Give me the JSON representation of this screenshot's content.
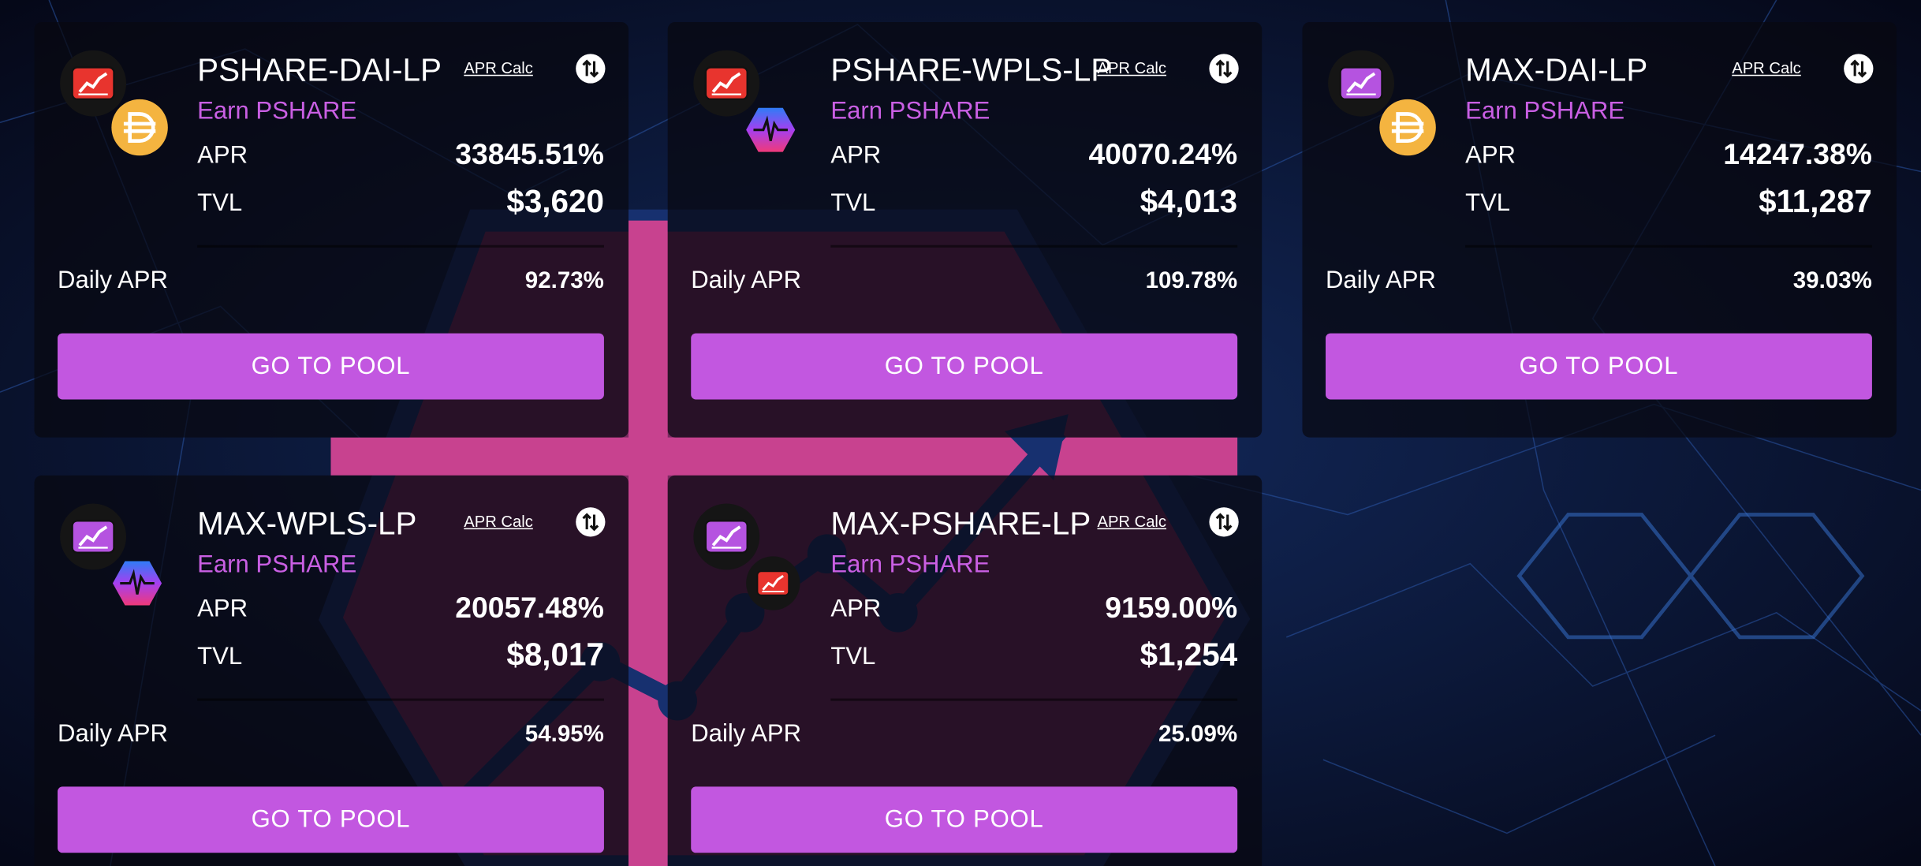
{
  "cards": [
    {
      "title": "PSHARE-DAI-LP",
      "apr_calc": "APR Calc",
      "earn": "Earn PSHARE",
      "apr_label": "APR",
      "apr": "33845.51%",
      "tvl_label": "TVL",
      "tvl": "$3,620",
      "daily_label": "Daily APR",
      "daily": "92.73%",
      "button": "GO TO POOL"
    },
    {
      "title": "PSHARE-WPLS-LP",
      "apr_calc": "APR Calc",
      "earn": "Earn PSHARE",
      "apr_label": "APR",
      "apr": "40070.24%",
      "tvl_label": "TVL",
      "tvl": "$4,013",
      "daily_label": "Daily APR",
      "daily": "109.78%",
      "button": "GO TO POOL"
    },
    {
      "title": "MAX-DAI-LP",
      "apr_calc": "APR Calc",
      "earn": "Earn PSHARE",
      "apr_label": "APR",
      "apr": "14247.38%",
      "tvl_label": "TVL",
      "tvl": "$11,287",
      "daily_label": "Daily APR",
      "daily": "39.03%",
      "button": "GO TO POOL"
    },
    {
      "title": "MAX-WPLS-LP",
      "apr_calc": "APR Calc",
      "earn": "Earn PSHARE",
      "apr_label": "APR",
      "apr": "20057.48%",
      "tvl_label": "TVL",
      "tvl": "$8,017",
      "daily_label": "Daily APR",
      "daily": "54.95%",
      "button": "GO TO POOL"
    },
    {
      "title": "MAX-PSHARE-LP",
      "apr_calc": "APR Calc",
      "earn": "Earn PSHARE",
      "apr_label": "APR",
      "apr": "9159.00%",
      "tvl_label": "TVL",
      "tvl": "$1,254",
      "daily_label": "Daily APR",
      "daily": "25.09%",
      "button": "GO TO POOL"
    }
  ]
}
